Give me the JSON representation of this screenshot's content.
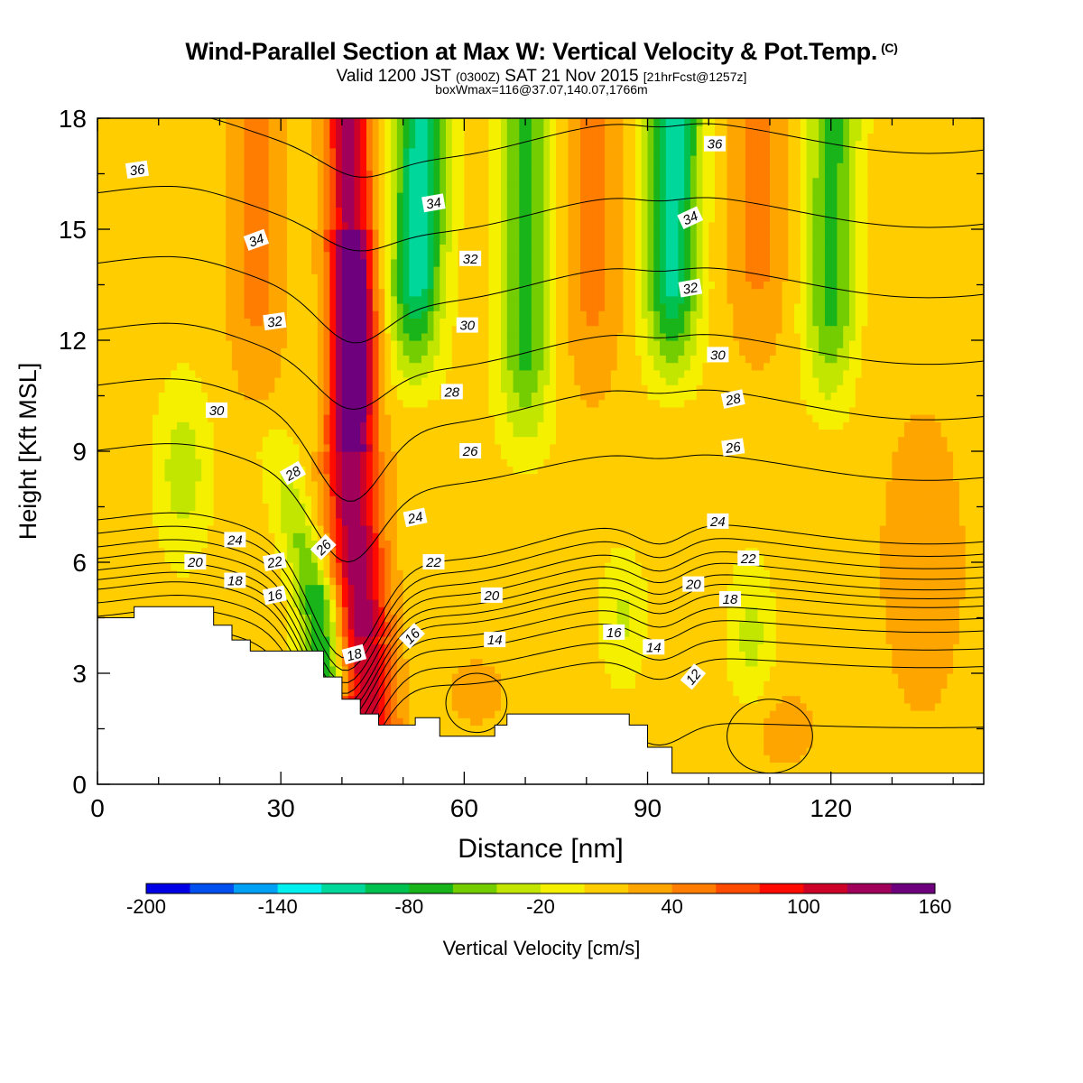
{
  "chart_data": {
    "type": "heatmap",
    "title": "Wind-Parallel Section at Max W: Vertical Velocity & Pot.Temp.",
    "copyright_mark": "(C)",
    "subtitle": {
      "valid_prefix": "Valid 1200 JST",
      "zulu": "(0300Z)",
      "date": "SAT 21 Nov 2015",
      "forecast": "[21hrFcst@1257z]",
      "boxline": "boxWmax=116@37.07,140.07,1766m"
    },
    "xlabel": "Distance [nm]",
    "ylabel": "Height [Kft MSL]",
    "xlim": [
      0,
      145
    ],
    "ylim": [
      0,
      18
    ],
    "x_ticks": [
      "0",
      "30",
      "60",
      "90",
      "120"
    ],
    "x_tick_values": [
      0,
      30,
      60,
      90,
      120
    ],
    "y_ticks": [
      "0",
      "3",
      "6",
      "9",
      "12",
      "15",
      "18"
    ],
    "y_tick_values": [
      0,
      3,
      6,
      9,
      12,
      15,
      18
    ],
    "colorbar": {
      "label": "Vertical Velocity [cm/s]",
      "min": -200,
      "max": 160,
      "step": 20,
      "tick_labels": [
        "-200",
        "-140",
        "-80",
        "-20",
        "40",
        "100",
        "160"
      ],
      "colors": [
        "#0000e6",
        "#0050f0",
        "#00a0f5",
        "#00f0f0",
        "#00d79b",
        "#00c050",
        "#19b419",
        "#73cd00",
        "#c3e600",
        "#f5f000",
        "#ffcd00",
        "#ffa500",
        "#ff7d00",
        "#ff4b00",
        "#ff0a00",
        "#cd0028",
        "#a0005a",
        "#6e007d"
      ]
    },
    "terrain": [
      [
        0,
        4.5
      ],
      [
        6,
        4.5
      ],
      [
        6,
        4.8
      ],
      [
        19,
        4.8
      ],
      [
        19,
        4.3
      ],
      [
        22,
        4.3
      ],
      [
        22,
        3.9
      ],
      [
        25,
        3.9
      ],
      [
        25,
        3.6
      ],
      [
        37,
        3.6
      ],
      [
        37,
        2.9
      ],
      [
        40,
        2.9
      ],
      [
        40,
        2.3
      ],
      [
        43,
        2.3
      ],
      [
        43,
        1.9
      ],
      [
        46,
        1.9
      ],
      [
        46,
        1.6
      ],
      [
        52,
        1.6
      ],
      [
        52,
        1.8
      ],
      [
        56,
        1.8
      ],
      [
        56,
        1.3
      ],
      [
        65,
        1.3
      ],
      [
        65,
        1.6
      ],
      [
        67,
        1.6
      ],
      [
        67,
        1.9
      ],
      [
        87,
        1.9
      ],
      [
        87,
        1.6
      ],
      [
        90,
        1.6
      ],
      [
        90,
        1.0
      ],
      [
        94,
        1.0
      ],
      [
        94,
        0.3
      ],
      [
        145,
        0.3
      ]
    ],
    "updraft_axis": [
      [
        44.5,
        1.8
      ],
      [
        43.5,
        4.0
      ],
      [
        42.0,
        7.0
      ],
      [
        41.5,
        9.5
      ],
      [
        41.8,
        12.0
      ],
      [
        41.5,
        15.0
      ],
      [
        41.0,
        18.0
      ]
    ],
    "downdraft_axis": [
      [
        37.0,
        2.8
      ],
      [
        36.5,
        4.5
      ],
      [
        34.5,
        6.0
      ],
      [
        32.0,
        7.5
      ],
      [
        29.0,
        9.5
      ]
    ],
    "upper_downdraft_axes": [
      [
        [
          52.0,
          12.5
        ],
        [
          52.5,
          15.0
        ],
        [
          53.0,
          18.0
        ]
      ],
      [
        [
          94.0,
          12.5
        ],
        [
          94.0,
          15.0
        ],
        [
          94.5,
          18.0
        ]
      ],
      [
        [
          70.0,
          10.5
        ],
        [
          70.0,
          14.0
        ],
        [
          70.0,
          18.0
        ]
      ],
      [
        [
          120.0,
          11.5
        ],
        [
          120.0,
          15.0
        ],
        [
          120.5,
          18.0
        ]
      ]
    ],
    "contour_levels": [
      12,
      14,
      16,
      18,
      20,
      22,
      24,
      26,
      28,
      30,
      32,
      34,
      36
    ],
    "contour_labels": [
      {
        "text": "36",
        "x": 6.5,
        "y": 16.6,
        "angle": -8
      },
      {
        "text": "34",
        "x": 26,
        "y": 14.7,
        "angle": -20
      },
      {
        "text": "32",
        "x": 29,
        "y": 12.5,
        "angle": -8
      },
      {
        "text": "30",
        "x": 19.5,
        "y": 10.1,
        "angle": 0
      },
      {
        "text": "28",
        "x": 32,
        "y": 8.4,
        "angle": -30
      },
      {
        "text": "26",
        "x": 37,
        "y": 6.4,
        "angle": -45
      },
      {
        "text": "24",
        "x": 22.5,
        "y": 6.6,
        "angle": 0
      },
      {
        "text": "22",
        "x": 29,
        "y": 6.0,
        "angle": -10
      },
      {
        "text": "20",
        "x": 16,
        "y": 6.0,
        "angle": 0
      },
      {
        "text": "18",
        "x": 22.5,
        "y": 5.5,
        "angle": 0
      },
      {
        "text": "16",
        "x": 29,
        "y": 5.1,
        "angle": -12
      },
      {
        "text": "18",
        "x": 42,
        "y": 3.5,
        "angle": -15
      },
      {
        "text": "16",
        "x": 51.5,
        "y": 4.0,
        "angle": -45
      },
      {
        "text": "34",
        "x": 55,
        "y": 15.7,
        "angle": -10
      },
      {
        "text": "32",
        "x": 61,
        "y": 14.2,
        "angle": 0
      },
      {
        "text": "30",
        "x": 60.5,
        "y": 12.4,
        "angle": 0
      },
      {
        "text": "28",
        "x": 58,
        "y": 10.6,
        "angle": 0
      },
      {
        "text": "26",
        "x": 61,
        "y": 9.0,
        "angle": 0
      },
      {
        "text": "24",
        "x": 52,
        "y": 7.2,
        "angle": -12
      },
      {
        "text": "22",
        "x": 55,
        "y": 6.0,
        "angle": 0
      },
      {
        "text": "20",
        "x": 64.5,
        "y": 5.1,
        "angle": 0
      },
      {
        "text": "14",
        "x": 65,
        "y": 3.9,
        "angle": 0
      },
      {
        "text": "36",
        "x": 101,
        "y": 17.3,
        "angle": 0
      },
      {
        "text": "34",
        "x": 97,
        "y": 15.3,
        "angle": -25
      },
      {
        "text": "32",
        "x": 97,
        "y": 13.4,
        "angle": -10
      },
      {
        "text": "30",
        "x": 101.5,
        "y": 11.6,
        "angle": 0
      },
      {
        "text": "28",
        "x": 104,
        "y": 10.4,
        "angle": -12
      },
      {
        "text": "26",
        "x": 104,
        "y": 9.1,
        "angle": -8
      },
      {
        "text": "24",
        "x": 101.5,
        "y": 7.1,
        "angle": 0
      },
      {
        "text": "22",
        "x": 106.5,
        "y": 6.1,
        "angle": 0
      },
      {
        "text": "20",
        "x": 97.5,
        "y": 5.4,
        "angle": 0
      },
      {
        "text": "18",
        "x": 103.5,
        "y": 5.0,
        "angle": 0
      },
      {
        "text": "16",
        "x": 84.5,
        "y": 4.1,
        "angle": 0
      },
      {
        "text": "14",
        "x": 91,
        "y": 3.7,
        "angle": 0
      },
      {
        "text": "12",
        "x": 97.5,
        "y": 2.9,
        "angle": -50
      }
    ]
  }
}
